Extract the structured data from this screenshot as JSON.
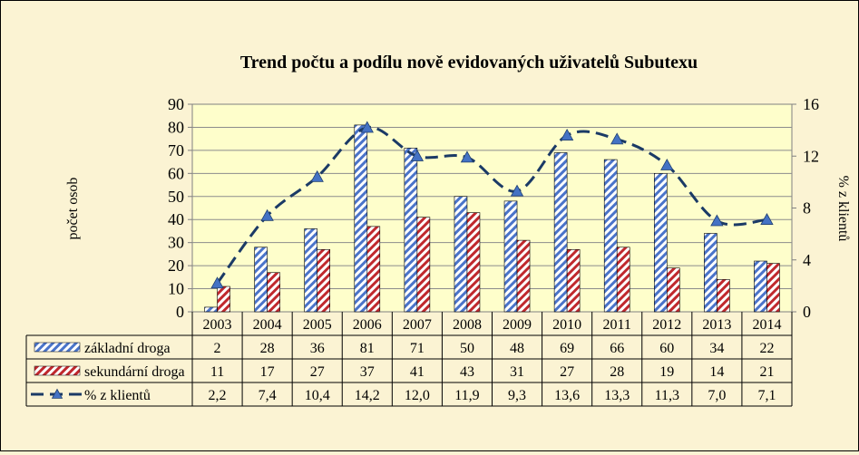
{
  "chart_data": {
    "type": "bar",
    "title": "Trend počtu a podílu nově evidovaných uživatelů Subutexu",
    "ylabel": "počet osob",
    "y2label": "% z klientů",
    "ylim": [
      0,
      90
    ],
    "y2lim": [
      0,
      16
    ],
    "yticks": [
      "0",
      "10",
      "20",
      "30",
      "40",
      "50",
      "60",
      "70",
      "80",
      "90"
    ],
    "y2ticks": [
      "0",
      "4",
      "8",
      "12",
      "16"
    ],
    "grid": true,
    "categories": [
      "2003",
      "2004",
      "2005",
      "2006",
      "2007",
      "2008",
      "2009",
      "2010",
      "2011",
      "2012",
      "2013",
      "2014"
    ],
    "series": [
      {
        "name": "základní droga",
        "kind": "bar",
        "axis": "left",
        "color": "#4a74c9",
        "values": [
          2,
          28,
          36,
          81,
          71,
          50,
          48,
          69,
          66,
          60,
          34,
          22
        ],
        "labels": [
          "2",
          "28",
          "36",
          "81",
          "71",
          "50",
          "48",
          "69",
          "66",
          "60",
          "34",
          "22"
        ]
      },
      {
        "name": "sekundární droga",
        "kind": "bar",
        "axis": "left",
        "color": "#c0282d",
        "values": [
          11,
          17,
          27,
          37,
          41,
          43,
          31,
          27,
          28,
          19,
          14,
          21
        ],
        "labels": [
          "11",
          "17",
          "27",
          "37",
          "41",
          "43",
          "31",
          "27",
          "28",
          "19",
          "14",
          "21"
        ]
      },
      {
        "name": "% z klientů",
        "kind": "line",
        "axis": "right",
        "color": "#1b3a66",
        "marker_color": "#4472c4",
        "values": [
          2.2,
          7.4,
          10.4,
          14.2,
          12.0,
          11.9,
          9.3,
          13.6,
          13.3,
          11.3,
          7.0,
          7.1
        ],
        "labels": [
          "2,2",
          "7,4",
          "10,4",
          "14,2",
          "12,0",
          "11,9",
          "9,3",
          "13,6",
          "13,3",
          "11,3",
          "7,0",
          "7,1"
        ]
      }
    ]
  }
}
